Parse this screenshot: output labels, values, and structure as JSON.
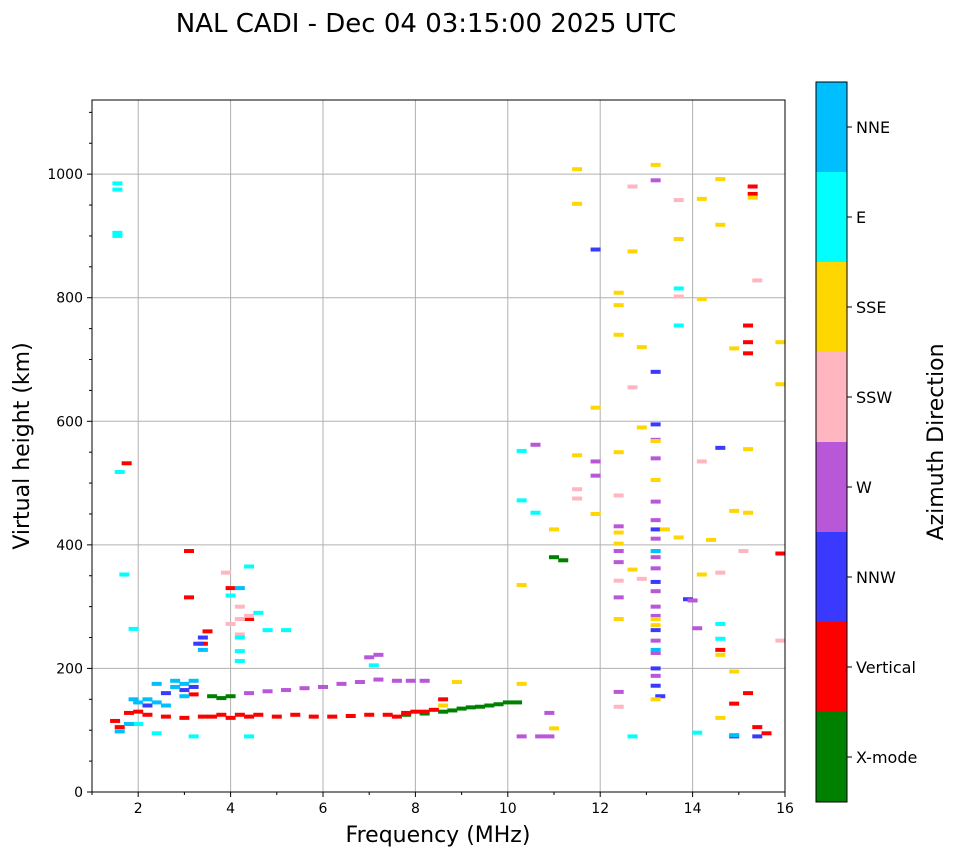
{
  "chart_data": {
    "type": "scatter",
    "title": "NAL CADI - Dec 04 03:15:00 2025 UTC",
    "xlabel": "Frequency (MHz)",
    "ylabel": "Virtual height (km)",
    "xlim": [
      1,
      16
    ],
    "ylim": [
      0,
      1120
    ],
    "xticks": [
      2,
      4,
      6,
      8,
      10,
      12,
      14,
      16
    ],
    "xtick_labels": [
      "2",
      "4",
      "6",
      "8",
      "10",
      "12",
      "14",
      "16"
    ],
    "yticks": [
      0,
      200,
      400,
      600,
      800,
      1000
    ],
    "ytick_labels": [
      "0",
      "200",
      "400",
      "600",
      "800",
      "1000"
    ],
    "grid": true,
    "colorbar": {
      "title": "Azimuth Direction",
      "categories": [
        "X-mode",
        "Vertical",
        "NNW",
        "W",
        "SSW",
        "SSE",
        "E",
        "NNE"
      ],
      "colors": [
        "#008000",
        "#ff0000",
        "#3a3aff",
        "#b857d8",
        "#ffb6c1",
        "#ffd700",
        "#00ffff",
        "#00bfff"
      ]
    },
    "series": [
      {
        "name": "X-mode",
        "points": [
          [
            3.6,
            155
          ],
          [
            3.8,
            152
          ],
          [
            4.0,
            155
          ],
          [
            7.8,
            125
          ],
          [
            8.2,
            127
          ],
          [
            8.6,
            130
          ],
          [
            8.8,
            132
          ],
          [
            9.0,
            135
          ],
          [
            9.2,
            137
          ],
          [
            9.4,
            138
          ],
          [
            9.6,
            140
          ],
          [
            9.8,
            142
          ],
          [
            10.0,
            145
          ],
          [
            10.2,
            145
          ],
          [
            11.0,
            380
          ],
          [
            11.2,
            375
          ]
        ]
      },
      {
        "name": "Vertical",
        "points": [
          [
            1.5,
            115
          ],
          [
            1.6,
            105
          ],
          [
            1.8,
            128
          ],
          [
            2.0,
            130
          ],
          [
            2.2,
            125
          ],
          [
            2.6,
            122
          ],
          [
            3.0,
            120
          ],
          [
            3.2,
            158
          ],
          [
            3.4,
            122
          ],
          [
            3.6,
            122
          ],
          [
            3.8,
            125
          ],
          [
            4.0,
            120
          ],
          [
            4.2,
            125
          ],
          [
            4.4,
            122
          ],
          [
            4.6,
            125
          ],
          [
            5.0,
            122
          ],
          [
            5.4,
            125
          ],
          [
            5.8,
            122
          ],
          [
            6.2,
            122
          ],
          [
            6.6,
            123
          ],
          [
            7.0,
            125
          ],
          [
            7.4,
            125
          ],
          [
            7.6,
            122
          ],
          [
            7.8,
            128
          ],
          [
            8.0,
            130
          ],
          [
            8.2,
            130
          ],
          [
            8.4,
            133
          ],
          [
            8.6,
            150
          ],
          [
            3.5,
            260
          ],
          [
            3.4,
            240
          ],
          [
            4.0,
            330
          ],
          [
            4.4,
            280
          ],
          [
            3.1,
            390
          ],
          [
            3.1,
            315
          ],
          [
            1.75,
            532
          ],
          [
            14.6,
            230
          ],
          [
            14.9,
            143
          ],
          [
            15.2,
            160
          ],
          [
            15.4,
            105
          ],
          [
            15.6,
            95
          ],
          [
            15.2,
            755
          ],
          [
            15.2,
            728
          ],
          [
            15.2,
            710
          ],
          [
            15.3,
            980
          ],
          [
            15.3,
            968
          ],
          [
            15.9,
            386
          ]
        ]
      },
      {
        "name": "NNW",
        "points": [
          [
            2.2,
            140
          ],
          [
            2.6,
            160
          ],
          [
            3.0,
            165
          ],
          [
            3.2,
            170
          ],
          [
            3.3,
            240
          ],
          [
            3.4,
            250
          ],
          [
            11.9,
            878
          ],
          [
            13.2,
            680
          ],
          [
            13.2,
            595
          ],
          [
            13.2,
            425
          ],
          [
            13.2,
            340
          ],
          [
            13.2,
            262
          ],
          [
            13.2,
            200
          ],
          [
            13.2,
            172
          ],
          [
            13.3,
            155
          ],
          [
            14.9,
            90
          ],
          [
            13.9,
            312
          ],
          [
            14.6,
            557
          ],
          [
            15.4,
            90
          ]
        ]
      },
      {
        "name": "W",
        "points": [
          [
            4.4,
            160
          ],
          [
            4.8,
            163
          ],
          [
            5.2,
            165
          ],
          [
            5.6,
            168
          ],
          [
            6.0,
            170
          ],
          [
            6.4,
            175
          ],
          [
            6.8,
            178
          ],
          [
            7.2,
            182
          ],
          [
            7.6,
            180
          ],
          [
            7.9,
            180
          ],
          [
            8.2,
            180
          ],
          [
            7.0,
            218
          ],
          [
            7.2,
            222
          ],
          [
            10.6,
            562
          ],
          [
            10.3,
            90
          ],
          [
            10.7,
            90
          ],
          [
            10.9,
            90
          ],
          [
            10.9,
            128
          ],
          [
            11.9,
            535
          ],
          [
            11.9,
            512
          ],
          [
            12.4,
            430
          ],
          [
            12.4,
            390
          ],
          [
            12.4,
            372
          ],
          [
            12.4,
            315
          ],
          [
            12.4,
            162
          ],
          [
            13.2,
            990
          ],
          [
            13.2,
            570
          ],
          [
            13.2,
            540
          ],
          [
            13.2,
            470
          ],
          [
            13.2,
            440
          ],
          [
            13.2,
            410
          ],
          [
            13.2,
            380
          ],
          [
            13.2,
            362
          ],
          [
            13.2,
            325
          ],
          [
            13.2,
            300
          ],
          [
            13.2,
            285
          ],
          [
            13.2,
            245
          ],
          [
            13.2,
            225
          ],
          [
            13.2,
            188
          ],
          [
            14.1,
            265
          ],
          [
            14.0,
            310
          ]
        ]
      },
      {
        "name": "SSW",
        "points": [
          [
            4.2,
            300
          ],
          [
            4.2,
            280
          ],
          [
            4.0,
            272
          ],
          [
            4.4,
            285
          ],
          [
            3.9,
            355
          ],
          [
            4.2,
            255
          ],
          [
            12.4,
            480
          ],
          [
            12.7,
            980
          ],
          [
            12.7,
            655
          ],
          [
            12.4,
            342
          ],
          [
            12.4,
            138
          ],
          [
            12.9,
            345
          ],
          [
            13.7,
            958
          ],
          [
            13.7,
            802
          ],
          [
            14.2,
            535
          ],
          [
            14.6,
            355
          ],
          [
            15.1,
            390
          ],
          [
            15.4,
            828
          ],
          [
            15.9,
            245
          ],
          [
            11.5,
            490
          ],
          [
            11.5,
            475
          ]
        ]
      },
      {
        "name": "SSE",
        "points": [
          [
            11.5,
            1008
          ],
          [
            11.5,
            952
          ],
          [
            11.9,
            622
          ],
          [
            11.9,
            450
          ],
          [
            11.5,
            545
          ],
          [
            12.4,
            808
          ],
          [
            12.4,
            788
          ],
          [
            12.4,
            740
          ],
          [
            12.4,
            550
          ],
          [
            12.4,
            420
          ],
          [
            12.4,
            402
          ],
          [
            12.4,
            280
          ],
          [
            12.7,
            875
          ],
          [
            12.7,
            360
          ],
          [
            12.9,
            720
          ],
          [
            12.9,
            590
          ],
          [
            13.2,
            1015
          ],
          [
            13.2,
            568
          ],
          [
            13.2,
            505
          ],
          [
            13.2,
            280
          ],
          [
            13.2,
            270
          ],
          [
            13.2,
            150
          ],
          [
            13.4,
            425
          ],
          [
            13.7,
            895
          ],
          [
            13.7,
            412
          ],
          [
            14.2,
            960
          ],
          [
            14.2,
            352
          ],
          [
            14.2,
            798
          ],
          [
            14.6,
            992
          ],
          [
            14.6,
            918
          ],
          [
            14.6,
            222
          ],
          [
            14.6,
            120
          ],
          [
            14.9,
            718
          ],
          [
            14.9,
            455
          ],
          [
            14.9,
            195
          ],
          [
            15.2,
            555
          ],
          [
            15.2,
            452
          ],
          [
            15.3,
            962
          ],
          [
            15.9,
            728
          ],
          [
            15.9,
            660
          ],
          [
            10.3,
            335
          ],
          [
            10.3,
            175
          ],
          [
            11.0,
            425
          ],
          [
            11.0,
            103
          ],
          [
            8.9,
            178
          ],
          [
            8.6,
            140
          ],
          [
            14.4,
            408
          ]
        ]
      },
      {
        "name": "E",
        "points": [
          [
            1.55,
            985
          ],
          [
            1.55,
            975
          ],
          [
            1.55,
            905
          ],
          [
            1.55,
            900
          ],
          [
            1.6,
            518
          ],
          [
            1.7,
            352
          ],
          [
            1.9,
            264
          ],
          [
            2.0,
            110
          ],
          [
            2.4,
            95
          ],
          [
            3.2,
            90
          ],
          [
            4.2,
            228
          ],
          [
            4.2,
            212
          ],
          [
            4.4,
            90
          ],
          [
            4.4,
            365
          ],
          [
            4.0,
            318
          ],
          [
            4.2,
            250
          ],
          [
            4.6,
            290
          ],
          [
            4.8,
            262
          ],
          [
            5.2,
            262
          ],
          [
            7.1,
            205
          ],
          [
            10.3,
            552
          ],
          [
            10.3,
            472
          ],
          [
            10.6,
            452
          ],
          [
            13.7,
            815
          ],
          [
            13.7,
            755
          ],
          [
            12.7,
            90
          ],
          [
            14.1,
            96
          ],
          [
            14.6,
            272
          ],
          [
            14.6,
            248
          ]
        ]
      },
      {
        "name": "NNE",
        "points": [
          [
            1.6,
            98
          ],
          [
            1.8,
            110
          ],
          [
            1.9,
            150
          ],
          [
            2.0,
            145
          ],
          [
            2.2,
            150
          ],
          [
            2.4,
            145
          ],
          [
            2.6,
            140
          ],
          [
            2.8,
            170
          ],
          [
            3.0,
            175
          ],
          [
            3.2,
            180
          ],
          [
            2.4,
            175
          ],
          [
            2.8,
            180
          ],
          [
            3.0,
            155
          ],
          [
            3.4,
            230
          ],
          [
            4.2,
            330
          ],
          [
            13.2,
            230
          ],
          [
            13.2,
            390
          ],
          [
            14.9,
            92
          ]
        ]
      }
    ]
  }
}
